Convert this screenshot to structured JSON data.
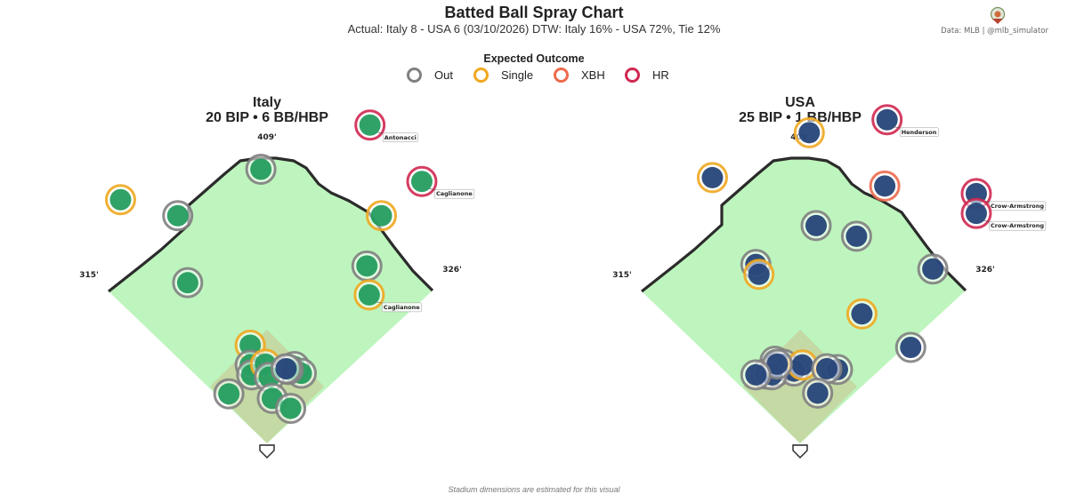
{
  "header": {
    "title": "Batted Ball Spray Chart",
    "subtitle": "Actual: Italy 8 - USA 6  (03/10/2026)    DTW: Italy 16% - USA 72%, Tie 12%",
    "credit": "Data: MLB  |  @mlb_simulator"
  },
  "legend": {
    "title": "Expected Outcome",
    "items": [
      {
        "label": "Out",
        "color": "#808080"
      },
      {
        "label": "Single",
        "color": "#F0A71F"
      },
      {
        "label": "XBH",
        "color": "#EC6A4C"
      },
      {
        "label": "HR",
        "color": "#D02750"
      }
    ]
  },
  "footnote": "Stadium dimensions are estimated for this visual",
  "colors": {
    "field": "#BEF5BE",
    "infield": "#C5CF9B",
    "wall": "#2B2B2B",
    "italy_fill": "#1E9A5A",
    "usa_fill": "#1F3F75"
  },
  "chart_data": [
    {
      "type": "scatter",
      "team": "Italy",
      "title_line1": "Italy",
      "title_line2": "20 BIP  •  6 BB/HBP",
      "distances": {
        "left": "315'",
        "center": "409'",
        "right": "326'"
      },
      "marker_color": "#1E9A5A",
      "x_unit": "feet from home plate toward right field",
      "y_unit": "feet from home plate toward center field",
      "points": [
        {
          "x": -192,
          "y": 320,
          "outcome": "Single",
          "team": "Italy"
        },
        {
          "x": -117,
          "y": 299,
          "outcome": "Out",
          "team": "Italy"
        },
        {
          "x": -8,
          "y": 360,
          "outcome": "Out",
          "team": "Italy"
        },
        {
          "x": 135,
          "y": 418,
          "outcome": "HR",
          "team": "Italy",
          "label": "Antonacci"
        },
        {
          "x": 203,
          "y": 344,
          "outcome": "HR",
          "team": "Italy",
          "label": "Caglianone"
        },
        {
          "x": 150,
          "y": 299,
          "outcome": "Single",
          "team": "Italy"
        },
        {
          "x": 131,
          "y": 233,
          "outcome": "Out",
          "team": "Italy"
        },
        {
          "x": 134,
          "y": 195,
          "outcome": "Single",
          "team": "Italy",
          "label": "Caglianone"
        },
        {
          "x": -104,
          "y": 211,
          "outcome": "Out",
          "team": "Italy"
        },
        {
          "x": -22,
          "y": 129,
          "outcome": "Single",
          "team": "Italy"
        },
        {
          "x": -22,
          "y": 103,
          "outcome": "Out",
          "team": "Italy"
        },
        {
          "x": -20,
          "y": 90,
          "outcome": "Out",
          "team": "Italy"
        },
        {
          "x": -2,
          "y": 104,
          "outcome": "Single",
          "team": "Italy"
        },
        {
          "x": 36,
          "y": 101,
          "outcome": "Out",
          "team": "Italy"
        },
        {
          "x": 45,
          "y": 92,
          "outcome": "Out",
          "team": "Italy"
        },
        {
          "x": 28,
          "y": 97,
          "outcome": "Out",
          "team": "Italy"
        },
        {
          "x": 3,
          "y": 87,
          "outcome": "Out",
          "team": "Italy"
        },
        {
          "x": 7,
          "y": 59,
          "outcome": "Out",
          "team": "Italy"
        },
        {
          "x": -50,
          "y": 65,
          "outcome": "Out",
          "team": "Italy"
        },
        {
          "x": 31,
          "y": 46,
          "outcome": "Out",
          "team": "Italy"
        }
      ],
      "overlay_points": [
        {
          "x": 25,
          "y": 98,
          "outcome": "Out",
          "team": "USA"
        }
      ]
    },
    {
      "type": "scatter",
      "team": "USA",
      "title_line1": "USA",
      "title_line2": "25 BIP  •  1 BB/HBP",
      "distances": {
        "left": "315'",
        "center": "409'",
        "right": "326'"
      },
      "marker_color": "#1F3F75",
      "x_unit": "feet from home plate toward right field",
      "y_unit": "feet from home plate toward center field",
      "points": [
        {
          "x": 114,
          "y": 425,
          "outcome": "HR",
          "team": "USA",
          "label": "Henderson"
        },
        {
          "x": 12,
          "y": 408,
          "outcome": "Single",
          "team": "USA"
        },
        {
          "x": -115,
          "y": 349,
          "outcome": "Single",
          "team": "USA"
        },
        {
          "x": 111,
          "y": 338,
          "outcome": "XBH",
          "team": "USA"
        },
        {
          "x": 231,
          "y": 328,
          "outcome": "HR",
          "team": "USA",
          "label": "Crow-Armstrong"
        },
        {
          "x": 231,
          "y": 302,
          "outcome": "HR",
          "team": "USA",
          "label": "Crow-Armstrong"
        },
        {
          "x": 21,
          "y": 286,
          "outcome": "Out",
          "team": "USA"
        },
        {
          "x": 74,
          "y": 272,
          "outcome": "Out",
          "team": "USA"
        },
        {
          "x": -58,
          "y": 235,
          "outcome": "Out",
          "team": "USA"
        },
        {
          "x": -54,
          "y": 222,
          "outcome": "Single",
          "team": "USA"
        },
        {
          "x": 174,
          "y": 229,
          "outcome": "Out",
          "team": "USA"
        },
        {
          "x": 81,
          "y": 170,
          "outcome": "Single",
          "team": "USA"
        },
        {
          "x": 145,
          "y": 126,
          "outcome": "Out",
          "team": "USA"
        },
        {
          "x": -33,
          "y": 108,
          "outcome": "Out",
          "team": "USA"
        },
        {
          "x": -45,
          "y": 91,
          "outcome": "Out",
          "team": "USA"
        },
        {
          "x": -22,
          "y": 104,
          "outcome": "Out",
          "team": "USA"
        },
        {
          "x": -30,
          "y": 95,
          "outcome": "Out",
          "team": "USA"
        },
        {
          "x": -8,
          "y": 95,
          "outcome": "Out",
          "team": "USA"
        },
        {
          "x": 3,
          "y": 103,
          "outcome": "Single",
          "team": "USA"
        },
        {
          "x": -37,
          "y": 90,
          "outcome": "Out",
          "team": "USA"
        },
        {
          "x": -30,
          "y": 104,
          "outcome": "Out",
          "team": "USA"
        },
        {
          "x": 49,
          "y": 97,
          "outcome": "Out",
          "team": "USA"
        },
        {
          "x": 35,
          "y": 98,
          "outcome": "Out",
          "team": "USA"
        },
        {
          "x": 23,
          "y": 66,
          "outcome": "Out",
          "team": "USA"
        },
        {
          "x": -58,
          "y": 90,
          "outcome": "Out",
          "team": "USA"
        }
      ]
    }
  ]
}
